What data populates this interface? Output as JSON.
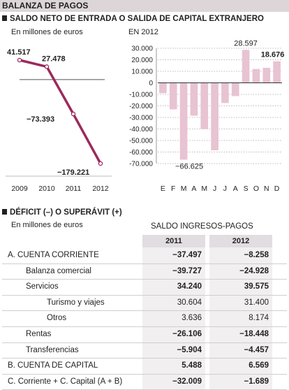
{
  "title": "BALANZA DE PAGOS",
  "section1": {
    "heading": "SALDO NETO DE ENTRADA O SALIDA DE CAPITAL EXTRANJERO"
  },
  "chart_data": [
    {
      "type": "line",
      "subtitle": "En millones de euros",
      "categories": [
        "2009",
        "2010",
        "2011",
        "2012"
      ],
      "values": [
        41517,
        27478,
        -73393,
        -179221
      ],
      "value_labels": [
        "41.517",
        "27.478",
        "−73.393",
        "−179.221"
      ],
      "color": "#9b2a5d"
    },
    {
      "type": "bar",
      "subtitle": "EN 2012",
      "categories": [
        "E",
        "F",
        "M",
        "A",
        "M",
        "J",
        "J",
        "A",
        "S",
        "O",
        "N",
        "D"
      ],
      "values": [
        -9000,
        -23000,
        -66625,
        -28500,
        -40000,
        -58500,
        -17500,
        -11500,
        28597,
        12000,
        13000,
        18676
      ],
      "ylim": [
        -70000,
        30000
      ],
      "yticks": [
        "30.000",
        "20.000",
        "10.000",
        "0",
        "-10.000",
        "-20.000",
        "-30.000",
        "-40.000",
        "-50.000",
        "-60.000",
        "-70.000"
      ],
      "annotations": [
        {
          "index": 2,
          "text": "−66.625"
        },
        {
          "index": 8,
          "text": "28.597"
        },
        {
          "index": 11,
          "text": "18.676"
        }
      ],
      "grid": true,
      "color": "#e8c3d2"
    }
  ],
  "section2": {
    "heading": "DÉFICIT (–) O SUPERÁVIT (+)",
    "unit": "En millones de euros",
    "table_title": "SALDO INGRESOS-PAGOS",
    "columns": [
      "2011",
      "2012"
    ],
    "rows": [
      {
        "label": "A. CUENTA CORRIENTE",
        "v2011": "−37.497",
        "v2012": "−8.258",
        "indent": 0,
        "bold": true
      },
      {
        "label": "Balanza comercial",
        "v2011": "−39.727",
        "v2012": "−24.928",
        "indent": 1,
        "bold": true
      },
      {
        "label": "Servicios",
        "v2011": "34.240",
        "v2012": "39.575",
        "indent": 1,
        "bold": true
      },
      {
        "label": "Turismo y viajes",
        "v2011": "30.604",
        "v2012": "31.400",
        "indent": 2,
        "bold": false
      },
      {
        "label": "Otros",
        "v2011": "3.636",
        "v2012": "8.174",
        "indent": 2,
        "bold": false
      },
      {
        "label": "Rentas",
        "v2011": "−26.106",
        "v2012": "−18.448",
        "indent": 1,
        "bold": true
      },
      {
        "label": "Transferencias",
        "v2011": "−5.904",
        "v2012": "−4.457",
        "indent": 1,
        "bold": true
      },
      {
        "label": "B. CUENTA DE CAPITAL",
        "v2011": "5.488",
        "v2012": "6.569",
        "indent": 0,
        "bold": true
      },
      {
        "label": "C. Corriente + C. Capital (A + B)",
        "v2011": "−32.009",
        "v2012": "−1.689",
        "indent": 0,
        "bold": true
      }
    ]
  }
}
